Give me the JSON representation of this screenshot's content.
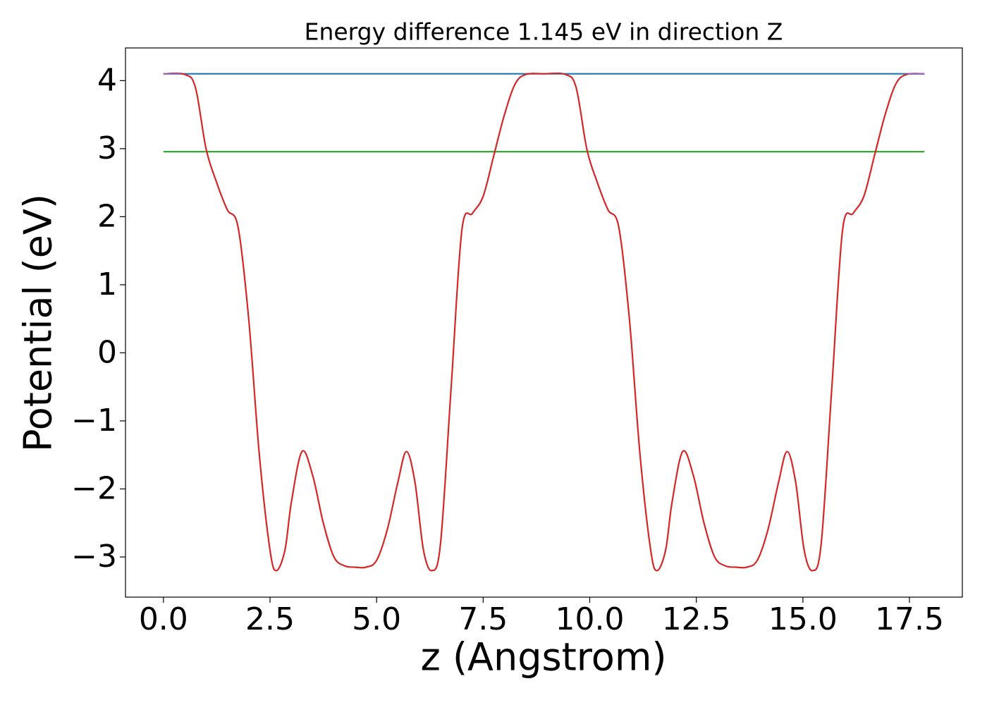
{
  "chart_data": {
    "type": "line",
    "title": "Energy difference 1.145 eV in direction Z",
    "xlabel": "z (Angstrom)",
    "ylabel": "Potential (eV)",
    "xlim": [
      -0.89,
      18.74
    ],
    "ylim": [
      -3.59,
      4.48
    ],
    "xticks": [
      {
        "value": 0,
        "label": "0.0"
      },
      2.5,
      {
        "value": 5,
        "label": "5.0"
      },
      7.5,
      {
        "value": 10,
        "label": "10.0"
      },
      12.5,
      {
        "value": 15,
        "label": "15.0"
      },
      17.5
    ],
    "yticks": [
      {
        "value": -3,
        "label": "−3"
      },
      {
        "value": -2,
        "label": "−2"
      },
      {
        "value": -1,
        "label": "−1"
      },
      0,
      1,
      2,
      3,
      4
    ],
    "series": [
      {
        "color": "#1f77b4",
        "x": [
          0,
          17.85
        ],
        "values": [
          4.1,
          4.1
        ]
      },
      {
        "color": "#2ca02c",
        "x": [
          0,
          17.85
        ],
        "values": [
          2.955,
          2.955
        ]
      },
      {
        "color": "#d62728",
        "x": [
          0,
          0.5,
          0.75,
          1.0,
          1.25,
          1.5,
          1.75,
          2.0,
          2.25,
          2.5,
          2.65,
          2.85,
          3.0,
          3.25,
          3.5,
          3.75,
          4.0,
          4.25,
          4.5,
          4.75,
          5.0,
          5.25,
          5.5,
          5.7,
          5.9,
          6.1,
          6.3,
          6.5,
          6.75,
          7.0,
          7.25,
          7.5,
          7.75,
          8.0,
          8.25,
          8.5,
          8.93,
          9.43,
          9.68,
          9.93,
          10.18,
          10.43,
          10.68,
          10.93,
          11.18,
          11.43,
          11.58,
          11.78,
          11.93,
          12.18,
          12.43,
          12.68,
          12.93,
          13.18,
          13.43,
          13.68,
          13.93,
          14.18,
          14.43,
          14.63,
          14.83,
          15.03,
          15.23,
          15.43,
          15.68,
          15.93,
          16.18,
          16.43,
          16.68,
          16.93,
          17.18,
          17.43,
          17.85
        ],
        "values": [
          4.1,
          4.09,
          3.9,
          3.0,
          2.5,
          2.1,
          1.85,
          0.5,
          -1.5,
          -2.9,
          -3.2,
          -2.9,
          -2.2,
          -1.45,
          -1.8,
          -2.5,
          -3.0,
          -3.13,
          -3.15,
          -3.15,
          -3.05,
          -2.6,
          -1.9,
          -1.45,
          -1.9,
          -2.9,
          -3.2,
          -2.8,
          -0.5,
          1.8,
          2.05,
          2.3,
          2.9,
          3.5,
          3.95,
          4.09,
          4.1,
          4.09,
          3.9,
          3.0,
          2.5,
          2.1,
          1.85,
          0.5,
          -1.5,
          -2.9,
          -3.2,
          -2.9,
          -2.2,
          -1.45,
          -1.8,
          -2.5,
          -3.0,
          -3.13,
          -3.15,
          -3.15,
          -3.05,
          -2.6,
          -1.9,
          -1.45,
          -1.9,
          -2.9,
          -3.2,
          -2.8,
          -0.5,
          1.8,
          2.05,
          2.3,
          2.9,
          3.5,
          3.95,
          4.09,
          4.1
        ]
      },
      {
        "color": "#9467bd",
        "x": [
          0,
          0.4,
          9.0,
          17.45,
          17.85
        ],
        "values": [
          4.1,
          4.1,
          null,
          4.1,
          4.1
        ]
      }
    ]
  }
}
